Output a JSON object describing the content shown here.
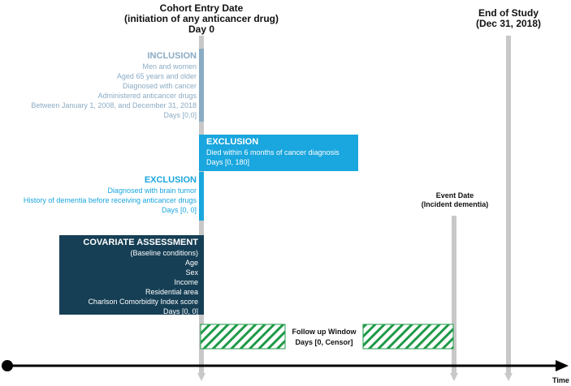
{
  "header": {
    "cohort_entry": [
      "Cohort Entry Date",
      "(initiation of any anticancer drug)",
      "Day 0"
    ],
    "end_of_study": [
      "End of Study",
      "(Dec 31, 2018)"
    ]
  },
  "inclusion": {
    "title": "INCLUSION",
    "lines": [
      "Men and women",
      "Aged 65 years and older",
      "Diagnosed with cancer",
      "Administered anticancer drugs",
      "Between January 1, 2008, and December 31, 2018",
      "Days [0,0]"
    ]
  },
  "exclusion_right": {
    "title": "EXCLUSION",
    "lines": [
      "Died within 6 months of cancer diagnosis",
      "Days [0, 180]"
    ]
  },
  "exclusion_left": {
    "title": "EXCLUSION",
    "lines": [
      "Diagnosed with brain tumor",
      "History of dementia before receiving anticancer drugs",
      "Days [0, 0]"
    ]
  },
  "covariate": {
    "title": "COVARIATE ASSESSMENT",
    "lines": [
      "(Baseline conditions)",
      "Age",
      "Sex",
      "Income",
      "Residential area",
      "Charlson Comorbidity Index score",
      "Days [0, 0]"
    ]
  },
  "event": [
    "Event Date",
    "(Incident dementia)"
  ],
  "follow_up": [
    "Follow up Window",
    "Days [0, Censor]"
  ],
  "axis_label": "Time",
  "colors": {
    "inclusion": "#8aabc4",
    "exclusion_light": "#1aa6de",
    "covariate_box": "#163f55",
    "hatch": "#1f9a48",
    "pillar": "#c8c8c8"
  }
}
